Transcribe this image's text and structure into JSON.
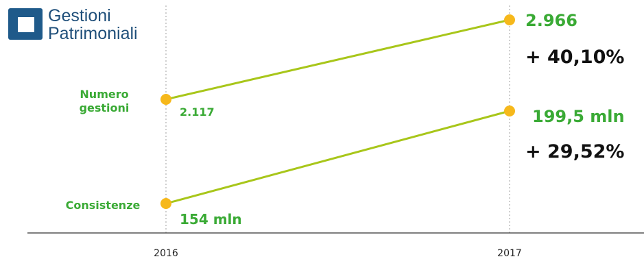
{
  "logo": {
    "line1": "Gestioni",
    "line2": "Patrimoniali"
  },
  "chart_data": {
    "type": "line",
    "x": [
      "2016",
      "2017"
    ],
    "series": [
      {
        "name": "Numero gestioni",
        "label_lines": [
          "Numero",
          "gestioni"
        ],
        "values": [
          2117,
          2966
        ],
        "value_labels": [
          "2.117",
          "2.966"
        ],
        "change": "+ 40,10%"
      },
      {
        "name": "Consistenze",
        "label_lines": [
          "Consistenze"
        ],
        "values": [
          154,
          199.5
        ],
        "value_labels": [
          "154 mln",
          "199,5 mln"
        ],
        "change": "+ 29,52%"
      }
    ],
    "colors": {
      "line": "#a8c61a",
      "point": "#f6b81b",
      "green_text": "#3aaa35",
      "change_text": "#111111",
      "axis": "#333333",
      "grid": "#bfbfbf"
    }
  }
}
